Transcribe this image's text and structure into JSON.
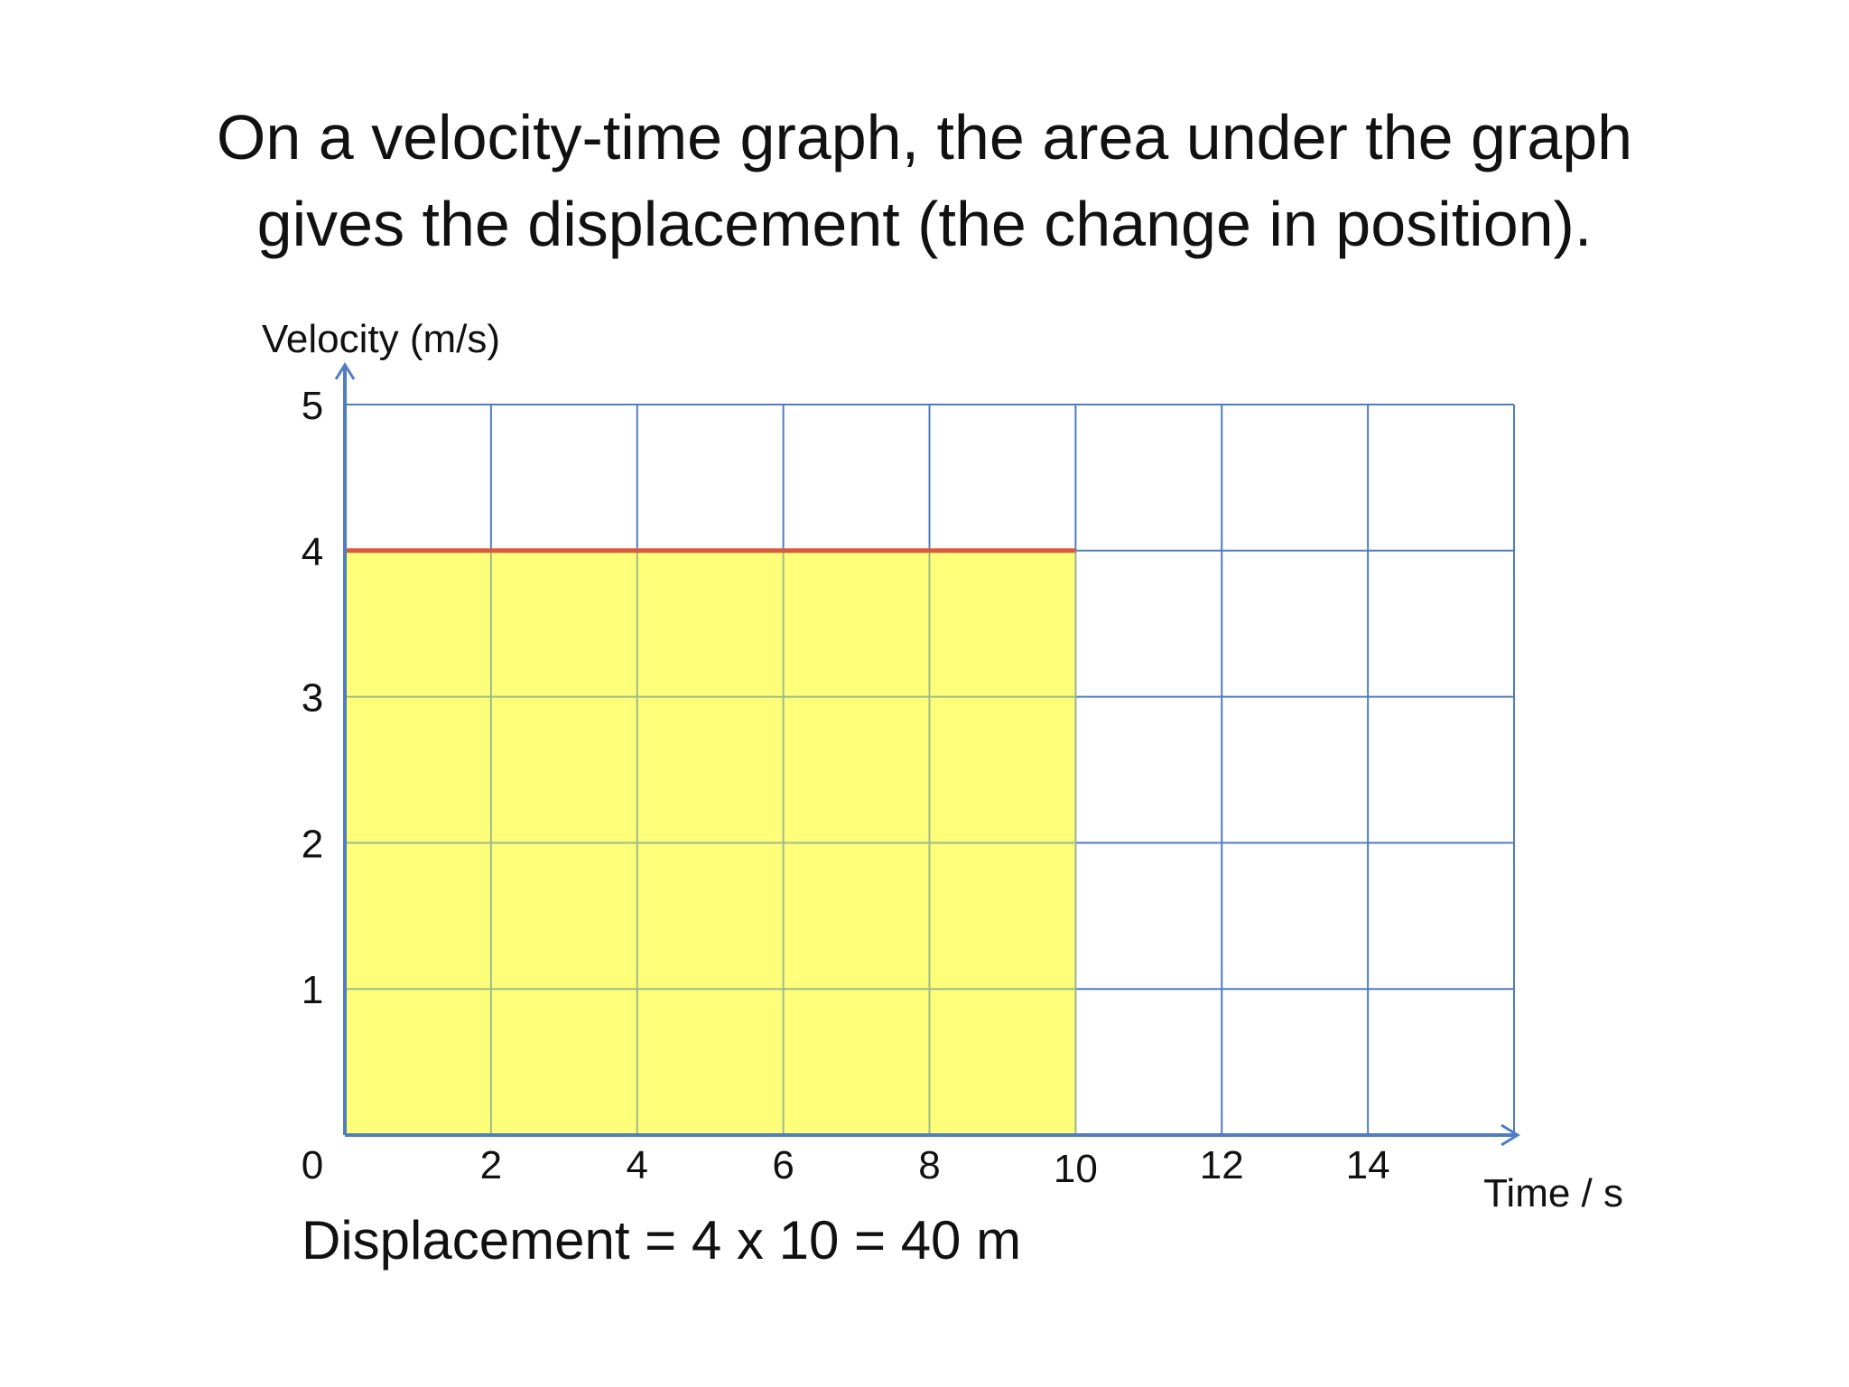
{
  "title": {
    "line1": "On a velocity-time graph, the area under the graph",
    "line2": "gives the displacement (the change in position)."
  },
  "footnote": "Displacement = 4 x 10 = 40 m",
  "colors": {
    "grid": "#4f7dbf",
    "axis": "#4f7dbf",
    "area_fill": "#ffff7a",
    "area_grid": "#9bbb8a",
    "line": "#d95b3a",
    "text": "#111111"
  },
  "chart_data": {
    "type": "area",
    "title": "",
    "xlabel": "Time / s",
    "ylabel": "Velocity (m/s)",
    "xlim": [
      0,
      16
    ],
    "ylim": [
      0,
      5
    ],
    "x_ticks": [
      0,
      2,
      4,
      6,
      8,
      10,
      12,
      14
    ],
    "y_ticks": [
      1,
      2,
      3,
      4,
      5
    ],
    "grid": true,
    "series": [
      {
        "x": [
          0,
          10
        ],
        "y": [
          4,
          4
        ]
      }
    ],
    "shaded_area": {
      "x_start": 0,
      "x_end": 10,
      "value": 4
    }
  }
}
